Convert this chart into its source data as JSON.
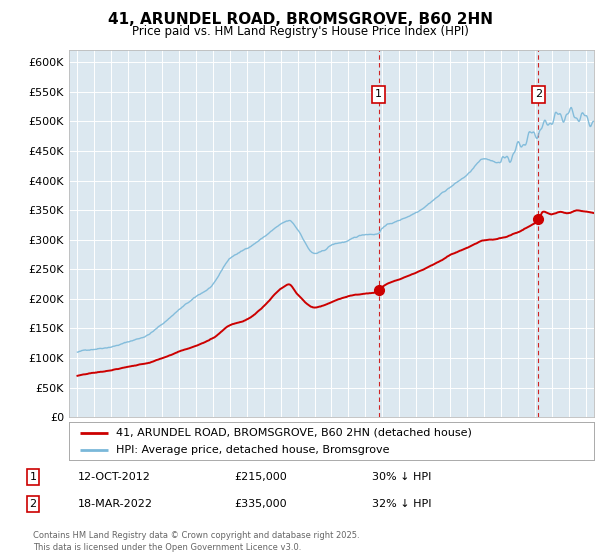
{
  "title": "41, ARUNDEL ROAD, BROMSGROVE, B60 2HN",
  "subtitle": "Price paid vs. HM Land Registry's House Price Index (HPI)",
  "legend_line1": "41, ARUNDEL ROAD, BROMSGROVE, B60 2HN (detached house)",
  "legend_line2": "HPI: Average price, detached house, Bromsgrove",
  "footnote": "Contains HM Land Registry data © Crown copyright and database right 2025.\nThis data is licensed under the Open Government Licence v3.0.",
  "sale1_date": "12-OCT-2012",
  "sale1_price": 215000,
  "sale1_text": "30% ↓ HPI",
  "sale2_date": "18-MAR-2022",
  "sale2_price": 335000,
  "sale2_text": "32% ↓ HPI",
  "sale1_x": 2012.78,
  "sale2_x": 2022.21,
  "hpi_color": "#7ab8d9",
  "price_color": "#cc0000",
  "background_color": "#dce8f0",
  "grid_color": "#ffffff",
  "ylim": [
    0,
    620000
  ],
  "xlim_start": 1994.5,
  "xlim_end": 2025.5
}
